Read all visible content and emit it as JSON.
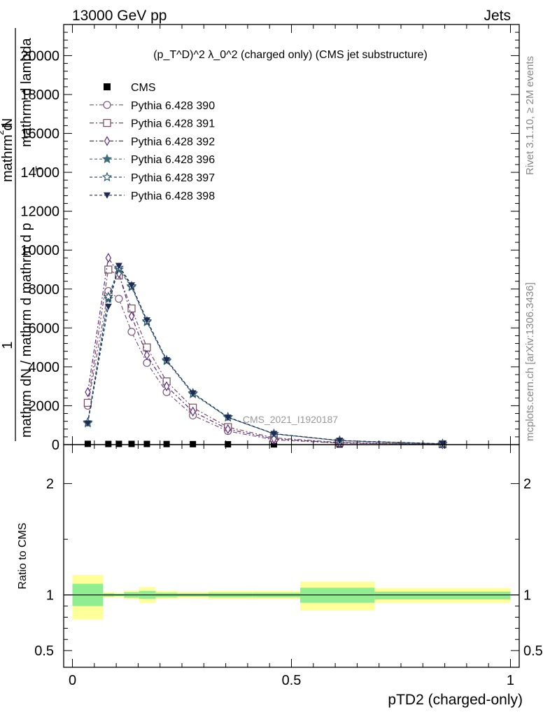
{
  "header": {
    "left": "13000 GeV pp",
    "right": "Jets"
  },
  "side_labels": {
    "rivet": "Rivet 3.1.10, ≥ 2M events",
    "mcplots": "mcplots.cern.ch [arXiv:1306.3436]"
  },
  "watermark": "CMS_2021_I1920187",
  "chart_data": [
    {
      "type": "line",
      "panel": "main",
      "title": "(p_T^D)^2 λ_0^2 (charged only) (CMS jet substructure)",
      "ylabel": "1 / mathrm dN / mathrm d mathrm d p_T mathrm d lambda   mathrm d^2 N",
      "ylabel_parts": [
        "1",
        "mathrm dN / mathrm d mathrm d p",
        "T",
        "mathrm d lambda",
        "mathrm d",
        "2",
        "N"
      ],
      "xlim": [
        -0.02,
        1.02
      ],
      "ylim": [
        0,
        21600
      ],
      "yticks": [
        0,
        2000,
        4000,
        6000,
        8000,
        10000,
        12000,
        14000,
        16000,
        18000,
        20000
      ],
      "ytick_labels": [
        "0",
        "2000",
        "4000",
        "6000",
        "8000",
        "10000",
        "12000",
        "14000",
        "16000",
        "18000",
        "20000"
      ],
      "legend_position": "top-left",
      "series": [
        {
          "name": "CMS",
          "marker": "filled-square",
          "color": "#000000",
          "style": "none",
          "x": [
            0.035,
            0.082,
            0.106,
            0.135,
            0.17,
            0.215,
            0.275,
            0.355,
            0.46,
            0.61,
            0.845
          ],
          "y": [
            40,
            35,
            38,
            37,
            35,
            30,
            25,
            20,
            12,
            6,
            2
          ]
        },
        {
          "name": "Pythia 6.428 390",
          "marker": "open-circle",
          "color": "#7b5579",
          "style": "dashdot",
          "x": [
            0.035,
            0.082,
            0.106,
            0.135,
            0.17,
            0.215,
            0.275,
            0.355,
            0.46,
            0.61,
            0.845
          ],
          "y": [
            2000,
            7900,
            7500,
            5800,
            4200,
            2700,
            1500,
            700,
            250,
            80,
            15
          ]
        },
        {
          "name": "Pythia 6.428 391",
          "marker": "open-square",
          "color": "#7a4a5a",
          "style": "dashdot",
          "x": [
            0.035,
            0.082,
            0.106,
            0.135,
            0.17,
            0.215,
            0.275,
            0.355,
            0.46,
            0.61,
            0.845
          ],
          "y": [
            2150,
            9000,
            8700,
            7000,
            5000,
            3250,
            1900,
            900,
            350,
            110,
            20
          ]
        },
        {
          "name": "Pythia 6.428 392",
          "marker": "open-diamond",
          "color": "#5a2e82",
          "style": "dashdot",
          "x": [
            0.035,
            0.082,
            0.106,
            0.135,
            0.17,
            0.215,
            0.275,
            0.355,
            0.46,
            0.61,
            0.845
          ],
          "y": [
            2700,
            9600,
            8800,
            6600,
            4600,
            3000,
            1700,
            800,
            300,
            90,
            15
          ]
        },
        {
          "name": "Pythia 6.428 396",
          "marker": "filled-star",
          "color": "#3d6d7a",
          "style": "dashed",
          "x": [
            0.035,
            0.082,
            0.106,
            0.135,
            0.17,
            0.215,
            0.275,
            0.355,
            0.46,
            0.61,
            0.845
          ],
          "y": [
            1100,
            7500,
            9000,
            8100,
            6300,
            4300,
            2600,
            1400,
            550,
            200,
            40
          ]
        },
        {
          "name": "Pythia 6.428 397",
          "marker": "open-star",
          "color": "#2f5873",
          "style": "dashed",
          "x": [
            0.035,
            0.082,
            0.106,
            0.135,
            0.17,
            0.215,
            0.275,
            0.355,
            0.46,
            0.61,
            0.845
          ],
          "y": [
            1150,
            7600,
            9100,
            8150,
            6350,
            4350,
            2650,
            1420,
            560,
            210,
            42
          ]
        },
        {
          "name": "Pythia 6.428 398",
          "marker": "filled-triangle-down",
          "color": "#1e2a52",
          "style": "dashed",
          "x": [
            0.035,
            0.082,
            0.106,
            0.135,
            0.17,
            0.215,
            0.275,
            0.355,
            0.46,
            0.61,
            0.845
          ],
          "y": [
            1100,
            7100,
            9200,
            8200,
            6400,
            4350,
            2650,
            1400,
            560,
            210,
            45
          ]
        }
      ]
    },
    {
      "type": "area",
      "panel": "ratio",
      "ylabel": "Ratio to CMS",
      "xlabel": "pTD2 (charged-only)",
      "xlim": [
        -0.02,
        1.02
      ],
      "ylim": [
        0.35,
        2.35
      ],
      "xticks": [
        0,
        0.5,
        1
      ],
      "xtick_labels": [
        "0",
        "0.5",
        "1"
      ],
      "yticks": [
        0.5,
        1,
        2
      ],
      "ytick_labels": [
        "0.5",
        "1",
        "2"
      ],
      "reference_line": 1,
      "bands": [
        {
          "x0": 0.0,
          "x1": 0.07,
          "stat_lo": 0.9,
          "stat_hi": 1.1,
          "tot_lo": 0.78,
          "tot_hi": 1.18
        },
        {
          "x0": 0.07,
          "x1": 0.095,
          "stat_lo": 0.985,
          "stat_hi": 1.015,
          "tot_lo": 0.975,
          "tot_hi": 1.025
        },
        {
          "x0": 0.095,
          "x1": 0.118,
          "stat_lo": 0.99,
          "stat_hi": 1.01,
          "tot_lo": 0.98,
          "tot_hi": 1.02
        },
        {
          "x0": 0.118,
          "x1": 0.152,
          "stat_lo": 0.975,
          "stat_hi": 1.025,
          "tot_lo": 0.96,
          "tot_hi": 1.04
        },
        {
          "x0": 0.152,
          "x1": 0.19,
          "stat_lo": 0.965,
          "stat_hi": 1.035,
          "tot_lo": 0.93,
          "tot_hi": 1.07
        },
        {
          "x0": 0.19,
          "x1": 0.24,
          "stat_lo": 0.98,
          "stat_hi": 1.02,
          "tot_lo": 0.965,
          "tot_hi": 1.035
        },
        {
          "x0": 0.24,
          "x1": 0.31,
          "stat_lo": 0.985,
          "stat_hi": 1.015,
          "tot_lo": 0.97,
          "tot_hi": 1.03
        },
        {
          "x0": 0.31,
          "x1": 0.41,
          "stat_lo": 0.98,
          "stat_hi": 1.02,
          "tot_lo": 0.96,
          "tot_hi": 1.035
        },
        {
          "x0": 0.41,
          "x1": 0.52,
          "stat_lo": 0.98,
          "stat_hi": 1.02,
          "tot_lo": 0.96,
          "tot_hi": 1.035
        },
        {
          "x0": 0.52,
          "x1": 0.69,
          "stat_lo": 0.93,
          "stat_hi": 1.065,
          "tot_lo": 0.86,
          "tot_hi": 1.12
        },
        {
          "x0": 0.69,
          "x1": 1.0,
          "stat_lo": 0.96,
          "stat_hi": 1.03,
          "tot_lo": 0.93,
          "tot_hi": 1.06
        }
      ],
      "band_colors": {
        "stat": "#90ee90",
        "total": "#ffff99"
      }
    }
  ]
}
